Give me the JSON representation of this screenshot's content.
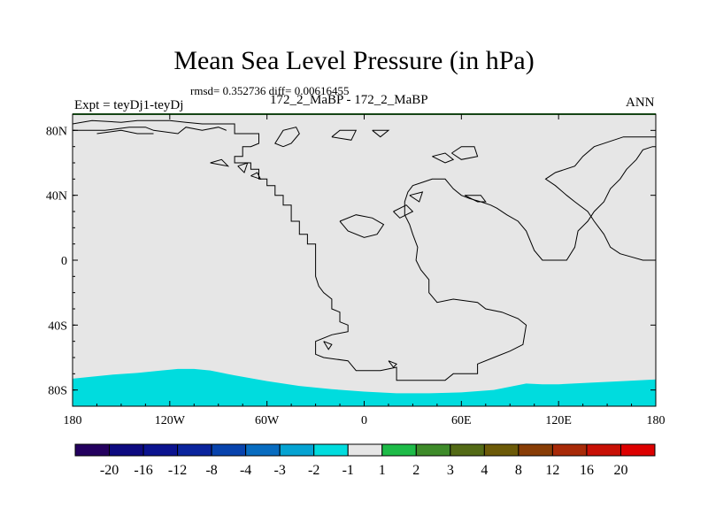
{
  "header": {
    "title": "Mean Sea Level Pressure (in hPa)",
    "stats": "rmsd= 0.352736 diff= 0.00616455",
    "experiment": "Expt = teyDj1-teyDj",
    "comparison": "172_2_MaBP - 172_2_MaBP",
    "season": "ANN"
  },
  "chart_data": {
    "type": "map",
    "title": "Mean Sea Level Pressure (in hPa)",
    "xlim": [
      -180,
      180
    ],
    "ylim": [
      -90,
      90
    ],
    "x_ticks": [
      {
        "value": -180,
        "label": "180"
      },
      {
        "value": -120,
        "label": "120W"
      },
      {
        "value": -60,
        "label": "60W"
      },
      {
        "value": 0,
        "label": "0"
      },
      {
        "value": 60,
        "label": "60E"
      },
      {
        "value": 120,
        "label": "120E"
      },
      {
        "value": 180,
        "label": "180"
      }
    ],
    "y_ticks": [
      {
        "value": 80,
        "label": "80N"
      },
      {
        "value": 40,
        "label": "40N"
      },
      {
        "value": 0,
        "label": "0"
      },
      {
        "value": -40,
        "label": "40S"
      },
      {
        "value": -80,
        "label": "80S"
      }
    ],
    "background_fill": "#e6e6e6",
    "colorbar": {
      "labels": [
        "-20",
        "-16",
        "-12",
        "-8",
        "-4",
        "-3",
        "-2",
        "-1",
        "1",
        "2",
        "3",
        "4",
        "8",
        "12",
        "16",
        "20"
      ],
      "colors": [
        "#24005f",
        "#0d0a80",
        "#0b138f",
        "#0a249d",
        "#0843ad",
        "#086cc0",
        "#05a3d2",
        "#00dcde",
        "#e6e6e6",
        "#1ebb48",
        "#3e8b2a",
        "#536a16",
        "#6c5a08",
        "#883d06",
        "#a82a08",
        "#c81005",
        "#dd0000"
      ]
    },
    "southern_band": {
      "color": "#00dcde",
      "label": "-2 to -1",
      "northern_edge": [
        [
          -180,
          -73
        ],
        [
          -170,
          -72
        ],
        [
          -155,
          -70.5
        ],
        [
          -140,
          -69.5
        ],
        [
          -125,
          -68
        ],
        [
          -115,
          -67
        ],
        [
          -105,
          -67
        ],
        [
          -95,
          -68
        ],
        [
          -80,
          -71
        ],
        [
          -60,
          -74.5
        ],
        [
          -40,
          -77.5
        ],
        [
          -20,
          -79.5
        ],
        [
          0,
          -81
        ],
        [
          20,
          -82
        ],
        [
          40,
          -82
        ],
        [
          60,
          -81.5
        ],
        [
          80,
          -80
        ],
        [
          90,
          -78
        ],
        [
          100,
          -76
        ],
        [
          110,
          -76.5
        ],
        [
          120,
          -76.5
        ],
        [
          140,
          -75.5
        ],
        [
          160,
          -74.5
        ],
        [
          180,
          -73.5
        ]
      ]
    },
    "coastlines": [
      [
        [
          -180,
          84
        ],
        [
          -168,
          86
        ],
        [
          -150,
          85
        ],
        [
          -140,
          86
        ],
        [
          -120,
          86
        ],
        [
          -110,
          85
        ],
        [
          -100,
          84
        ],
        [
          -80,
          84
        ],
        [
          -80,
          78
        ],
        [
          -65,
          78
        ],
        [
          -65,
          72
        ],
        [
          -70,
          70
        ],
        [
          -75,
          70
        ],
        [
          -75,
          64
        ],
        [
          -80,
          64
        ],
        [
          -80,
          60
        ],
        [
          -70,
          60
        ],
        [
          -70,
          56
        ],
        [
          -65,
          56
        ],
        [
          -65,
          50
        ],
        [
          -60,
          50
        ],
        [
          -60,
          46
        ],
        [
          -55,
          46
        ],
        [
          -55,
          40
        ],
        [
          -50,
          40
        ],
        [
          -50,
          34
        ],
        [
          -45,
          34
        ],
        [
          -45,
          24
        ],
        [
          -40,
          24
        ],
        [
          -40,
          16
        ],
        [
          -35,
          16
        ],
        [
          -35,
          10
        ],
        [
          -30,
          10
        ],
        [
          -30,
          -10
        ],
        [
          -28,
          -16
        ],
        [
          -25,
          -20
        ],
        [
          -20,
          -24
        ],
        [
          -20,
          -30
        ],
        [
          -15,
          -32
        ],
        [
          -15,
          -38
        ],
        [
          -10,
          -40
        ],
        [
          -10,
          -44
        ],
        [
          -20,
          -46
        ],
        [
          -30,
          -50
        ],
        [
          -30,
          -58
        ],
        [
          -25,
          -60
        ],
        [
          -10,
          -62
        ],
        [
          -5,
          -68
        ],
        [
          10,
          -68
        ],
        [
          20,
          -66
        ],
        [
          20,
          -74
        ],
        [
          40,
          -74
        ],
        [
          50,
          -74
        ],
        [
          55,
          -70
        ],
        [
          70,
          -70
        ],
        [
          70,
          -64
        ],
        [
          80,
          -60
        ],
        [
          90,
          -56
        ],
        [
          98,
          -52
        ],
        [
          100,
          -40
        ],
        [
          95,
          -36
        ],
        [
          85,
          -32
        ],
        [
          75,
          -30
        ],
        [
          70,
          -26
        ],
        [
          55,
          -24
        ],
        [
          45,
          -26
        ],
        [
          40,
          -20
        ],
        [
          40,
          -12
        ],
        [
          35,
          -6
        ],
        [
          32,
          0
        ],
        [
          33,
          8
        ],
        [
          30,
          16
        ],
        [
          28,
          22
        ],
        [
          25,
          28
        ],
        [
          25,
          36
        ],
        [
          27,
          42
        ],
        [
          30,
          46
        ],
        [
          36,
          48
        ],
        [
          42,
          50
        ],
        [
          50,
          50
        ],
        [
          55,
          44
        ],
        [
          60,
          40
        ],
        [
          65,
          38
        ],
        [
          72,
          36
        ],
        [
          78,
          34
        ],
        [
          82,
          32
        ],
        [
          88,
          28
        ],
        [
          95,
          24
        ],
        [
          100,
          18
        ],
        [
          105,
          6
        ],
        [
          110,
          0
        ],
        [
          125,
          0
        ],
        [
          130,
          8
        ],
        [
          132,
          18
        ],
        [
          138,
          24
        ],
        [
          142,
          30
        ],
        [
          148,
          36
        ],
        [
          152,
          44
        ],
        [
          158,
          50
        ],
        [
          162,
          56
        ],
        [
          168,
          62
        ],
        [
          172,
          68
        ],
        [
          178,
          70
        ],
        [
          180,
          70
        ]
      ],
      [
        [
          180,
          76
        ],
        [
          160,
          76
        ],
        [
          142,
          70
        ],
        [
          135,
          64
        ],
        [
          130,
          58
        ],
        [
          118,
          54
        ],
        [
          112,
          50
        ],
        [
          118,
          46
        ],
        [
          125,
          40
        ],
        [
          130,
          36
        ],
        [
          138,
          30
        ],
        [
          142,
          24
        ],
        [
          148,
          16
        ],
        [
          152,
          8
        ],
        [
          158,
          4
        ],
        [
          165,
          2
        ],
        [
          172,
          0
        ],
        [
          180,
          0
        ]
      ],
      [
        [
          -180,
          80
        ],
        [
          -160,
          80
        ],
        [
          -145,
          82
        ],
        [
          -135,
          82
        ],
        [
          -130,
          80
        ],
        [
          -115,
          78
        ],
        [
          -110,
          82
        ],
        [
          -100,
          80
        ],
        [
          -90,
          82
        ],
        [
          -85,
          80
        ]
      ],
      [
        [
          -165,
          78
        ],
        [
          -150,
          80
        ],
        [
          -140,
          78
        ],
        [
          -130,
          78
        ]
      ],
      [
        [
          -95,
          60
        ],
        [
          -88,
          62
        ],
        [
          -84,
          58
        ],
        [
          -95,
          60
        ]
      ],
      [
        [
          -78,
          58
        ],
        [
          -72,
          60
        ],
        [
          -74,
          54
        ],
        [
          -78,
          58
        ]
      ],
      [
        [
          -70,
          52
        ],
        [
          -66,
          54
        ],
        [
          -64,
          50
        ],
        [
          -70,
          52
        ]
      ],
      [
        [
          -50,
          70
        ],
        [
          -45,
          72
        ],
        [
          -40,
          78
        ],
        [
          -42,
          82
        ],
        [
          -50,
          80
        ],
        [
          -55,
          72
        ],
        [
          -50,
          70
        ]
      ],
      [
        [
          -20,
          76
        ],
        [
          -15,
          80
        ],
        [
          -5,
          80
        ],
        [
          -8,
          74
        ],
        [
          -20,
          76
        ]
      ],
      [
        [
          5,
          80
        ],
        [
          15,
          80
        ],
        [
          10,
          76
        ],
        [
          5,
          80
        ]
      ],
      [
        [
          -15,
          24
        ],
        [
          -5,
          28
        ],
        [
          5,
          26
        ],
        [
          12,
          22
        ],
        [
          8,
          16
        ],
        [
          0,
          14
        ],
        [
          -10,
          18
        ],
        [
          -15,
          24
        ]
      ],
      [
        [
          42,
          64
        ],
        [
          50,
          66
        ],
        [
          55,
          62
        ],
        [
          50,
          60
        ],
        [
          42,
          64
        ]
      ],
      [
        [
          54,
          66
        ],
        [
          60,
          70
        ],
        [
          68,
          70
        ],
        [
          70,
          64
        ],
        [
          60,
          62
        ],
        [
          54,
          66
        ]
      ],
      [
        [
          62,
          40
        ],
        [
          70,
          36
        ],
        [
          75,
          36
        ],
        [
          72,
          40
        ],
        [
          62,
          40
        ]
      ],
      [
        [
          18,
          30
        ],
        [
          26,
          34
        ],
        [
          30,
          30
        ],
        [
          22,
          26
        ],
        [
          18,
          30
        ]
      ],
      [
        [
          28,
          40
        ],
        [
          36,
          42
        ],
        [
          34,
          36
        ],
        [
          28,
          40
        ]
      ],
      [
        [
          -25,
          -50
        ],
        [
          -20,
          -52
        ],
        [
          -22,
          -55
        ],
        [
          -25,
          -50
        ]
      ],
      [
        [
          15,
          -62
        ],
        [
          20,
          -64
        ],
        [
          18,
          -66
        ],
        [
          15,
          -62
        ]
      ]
    ]
  }
}
